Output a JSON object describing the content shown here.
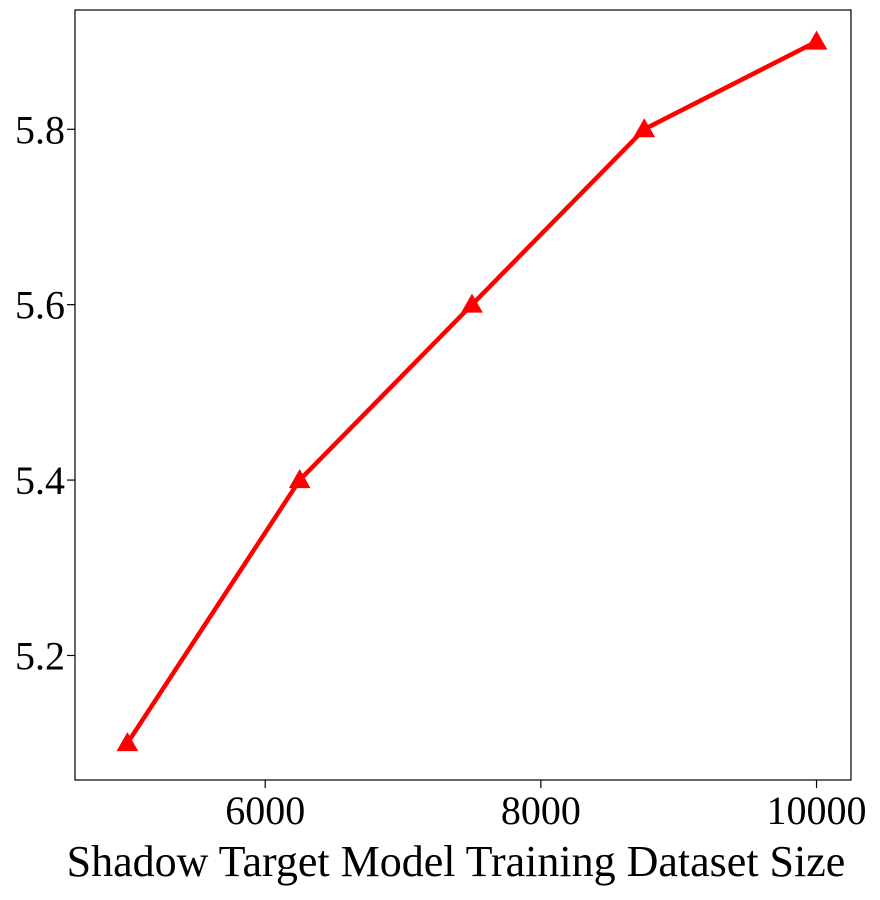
{
  "chart_data": {
    "type": "line",
    "xlabel": "Shadow Target Model Training Dataset Size",
    "ylabel": "",
    "title": "",
    "x": [
      5000,
      6250,
      7500,
      8750,
      10000
    ],
    "series": [
      {
        "values": [
          5.1,
          5.4,
          5.6,
          5.8,
          5.9
        ],
        "color": "#ff0000",
        "marker": "triangle"
      }
    ],
    "x_ticks": [
      6000,
      8000,
      10000
    ],
    "x_tick_labels": [
      "6000",
      "8000",
      "10000"
    ],
    "y_ticks": [
      5.2,
      5.4,
      5.6,
      5.8
    ],
    "y_tick_labels": [
      "5.2",
      "5.4",
      "5.6",
      "5.8"
    ],
    "xlim": [
      4620,
      10250
    ],
    "ylim": [
      5.058,
      5.936
    ],
    "grid": false,
    "legend": "none"
  }
}
